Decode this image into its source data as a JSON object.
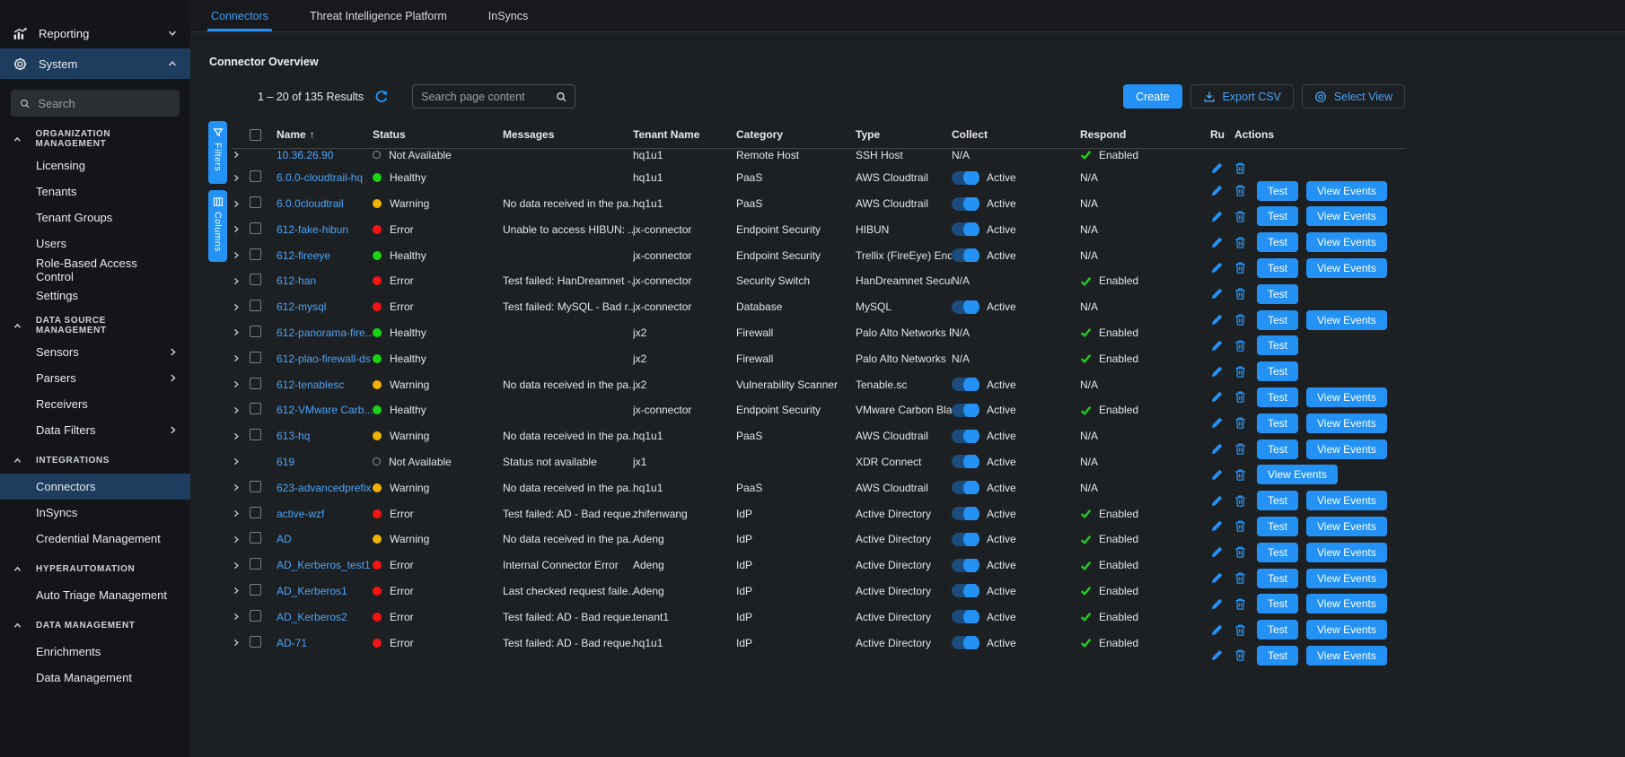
{
  "colors": {
    "accent": "#2492f4",
    "link": "#4ba3f7",
    "healthy": "#17d414",
    "warning": "#f2b300",
    "error": "#f51414",
    "enabled_check": "#25cb25",
    "selected_nav_bg": "#1d3c5e"
  },
  "sidebar": {
    "top_items": [
      {
        "label": "Reporting",
        "icon": "chart-icon",
        "chevron": "down",
        "selected": false
      },
      {
        "label": "System",
        "icon": "gear-icon",
        "chevron": "up",
        "selected": true
      }
    ],
    "search_placeholder": "Search",
    "sections": [
      {
        "title": "ORGANIZATION MANAGEMENT",
        "items": [
          {
            "label": "Licensing"
          },
          {
            "label": "Tenants"
          },
          {
            "label": "Tenant Groups"
          },
          {
            "label": "Users"
          },
          {
            "label": "Role-Based Access Control"
          },
          {
            "label": "Settings"
          }
        ]
      },
      {
        "title": "DATA SOURCE MANAGEMENT",
        "items": [
          {
            "label": "Sensors",
            "chevron": true
          },
          {
            "label": "Parsers",
            "chevron": true
          },
          {
            "label": "Receivers"
          },
          {
            "label": "Data Filters",
            "chevron": true
          }
        ]
      },
      {
        "title": "INTEGRATIONS",
        "items": [
          {
            "label": "Connectors",
            "selected": true
          },
          {
            "label": "InSyncs"
          },
          {
            "label": "Credential Management"
          }
        ]
      },
      {
        "title": "HYPERAUTOMATION",
        "items": [
          {
            "label": "Auto Triage Management"
          }
        ]
      },
      {
        "title": "DATA MANAGEMENT",
        "items": [
          {
            "label": "Enrichments"
          },
          {
            "label": "Data Management"
          }
        ]
      }
    ]
  },
  "tabs": [
    {
      "label": "Connectors",
      "active": true
    },
    {
      "label": "Threat Intelligence Platform",
      "active": false
    },
    {
      "label": "InSyncs",
      "active": false
    }
  ],
  "page": {
    "title": "Connector Overview",
    "results_text": "1 – 20 of 135 Results",
    "search_placeholder": "Search page content",
    "buttons": {
      "create": "Create",
      "export_csv": "Export CSV",
      "select_view": "Select View"
    },
    "rail": {
      "filters": "Filters",
      "columns": "Columns"
    }
  },
  "table": {
    "headers": [
      "Name",
      "Status",
      "Messages",
      "Tenant Name",
      "Category",
      "Type",
      "Collect",
      "Respond",
      "Ru",
      "Actions"
    ],
    "rows": [
      {
        "name": "10.36.26.90",
        "checkbox": false,
        "status": "Not Available",
        "message": "",
        "tenant": "hq1u1",
        "category": "Remote Host",
        "type": "SSH Host",
        "collect": "N/A",
        "respond": "Enabled",
        "actions": []
      },
      {
        "name": "6.0.0-cloudtrail-hq",
        "checkbox": true,
        "status": "Healthy",
        "message": "",
        "tenant": "hq1u1",
        "category": "PaaS",
        "type": "AWS Cloudtrail",
        "collect": "Active",
        "respond": "N/A",
        "actions": [
          "Test",
          "View Events"
        ]
      },
      {
        "name": "6.0.0cloudtrail",
        "checkbox": true,
        "status": "Warning",
        "message": "No data received in the pa...",
        "tenant": "hq1u1",
        "category": "PaaS",
        "type": "AWS Cloudtrail",
        "collect": "Active",
        "respond": "N/A",
        "actions": [
          "Test",
          "View Events"
        ]
      },
      {
        "name": "612-fake-hibun",
        "checkbox": true,
        "status": "Error",
        "message": "Unable to access HIBUN: ...",
        "tenant": "jx-connector",
        "category": "Endpoint Security",
        "type": "HIBUN",
        "collect": "Active",
        "respond": "N/A",
        "actions": [
          "Test",
          "View Events"
        ]
      },
      {
        "name": "612-fireeye",
        "checkbox": true,
        "status": "Healthy",
        "message": "",
        "tenant": "jx-connector",
        "category": "Endpoint Security",
        "type": "Trellix (FireEye) Endp",
        "collect": "Active",
        "respond": "N/A",
        "actions": [
          "Test",
          "View Events"
        ]
      },
      {
        "name": "612-han",
        "checkbox": true,
        "status": "Error",
        "message": "Test failed: HanDreamnet -...",
        "tenant": "jx-connector",
        "category": "Security Switch",
        "type": "HanDreamnet Securit",
        "collect": "N/A",
        "respond": "Enabled",
        "actions": [
          "Test"
        ]
      },
      {
        "name": "612-mysql",
        "checkbox": true,
        "status": "Error",
        "message": "Test failed: MySQL - Bad r...",
        "tenant": "jx-connector",
        "category": "Database",
        "type": "MySQL",
        "collect": "Active",
        "respond": "N/A",
        "actions": [
          "Test",
          "View Events"
        ]
      },
      {
        "name": "612-panorama-fire...",
        "checkbox": true,
        "status": "Healthy",
        "message": "",
        "tenant": "jx2",
        "category": "Firewall",
        "type": "Palo Alto Networks Pa",
        "collect": "N/A",
        "respond": "Enabled",
        "actions": [
          "Test"
        ]
      },
      {
        "name": "612-plao-firewall-ds",
        "checkbox": true,
        "status": "Healthy",
        "message": "",
        "tenant": "jx2",
        "category": "Firewall",
        "type": "Palo Alto Networks",
        "collect": "N/A",
        "respond": "Enabled",
        "actions": [
          "Test"
        ]
      },
      {
        "name": "612-tenablesc",
        "checkbox": true,
        "status": "Warning",
        "message": "No data received in the pa...",
        "tenant": "jx2",
        "category": "Vulnerability Scanner",
        "type": "Tenable.sc",
        "collect": "Active",
        "respond": "N/A",
        "actions": [
          "Test",
          "View Events"
        ]
      },
      {
        "name": "612-VMware Carb...",
        "checkbox": true,
        "status": "Healthy",
        "message": "",
        "tenant": "jx-connector",
        "category": "Endpoint Security",
        "type": "VMware Carbon Blac",
        "collect": "Active",
        "respond": "Enabled",
        "actions": [
          "Test",
          "View Events"
        ]
      },
      {
        "name": "613-hq",
        "checkbox": true,
        "status": "Warning",
        "message": "No data received in the pa...",
        "tenant": "hq1u1",
        "category": "PaaS",
        "type": "AWS Cloudtrail",
        "collect": "Active",
        "respond": "N/A",
        "actions": [
          "Test",
          "View Events"
        ]
      },
      {
        "name": "619",
        "checkbox": false,
        "status": "Not Available",
        "message": "Status not available",
        "tenant": "jx1",
        "category": "",
        "type": "XDR Connect",
        "collect": "Active",
        "respond": "N/A",
        "actions": [
          "View Events"
        ]
      },
      {
        "name": "623-advancedprefix",
        "checkbox": true,
        "status": "Warning",
        "message": "No data received in the pa...",
        "tenant": "hq1u1",
        "category": "PaaS",
        "type": "AWS Cloudtrail",
        "collect": "Active",
        "respond": "N/A",
        "actions": [
          "Test",
          "View Events"
        ]
      },
      {
        "name": "active-wzf",
        "checkbox": true,
        "status": "Error",
        "message": "Test failed: AD - Bad reque...",
        "tenant": "zhifenwang",
        "category": "IdP",
        "type": "Active Directory",
        "collect": "Active",
        "respond": "Enabled",
        "actions": [
          "Test",
          "View Events"
        ]
      },
      {
        "name": "AD",
        "checkbox": true,
        "status": "Warning",
        "message": "No data received in the pa...",
        "tenant": "Adeng",
        "category": "IdP",
        "type": "Active Directory",
        "collect": "Active",
        "respond": "Enabled",
        "actions": [
          "Test",
          "View Events"
        ]
      },
      {
        "name": "AD_Kerberos_test1",
        "checkbox": true,
        "status": "Error",
        "message": "Internal Connector Error",
        "tenant": "Adeng",
        "category": "IdP",
        "type": "Active Directory",
        "collect": "Active",
        "respond": "Enabled",
        "actions": [
          "Test",
          "View Events"
        ]
      },
      {
        "name": "AD_Kerberos1",
        "checkbox": true,
        "status": "Error",
        "message": "Last checked request faile...",
        "tenant": "Adeng",
        "category": "IdP",
        "type": "Active Directory",
        "collect": "Active",
        "respond": "Enabled",
        "actions": [
          "Test",
          "View Events"
        ]
      },
      {
        "name": "AD_Kerberos2",
        "checkbox": true,
        "status": "Error",
        "message": "Test failed: AD - Bad reque...",
        "tenant": "tenant1",
        "category": "IdP",
        "type": "Active Directory",
        "collect": "Active",
        "respond": "Enabled",
        "actions": [
          "Test",
          "View Events"
        ]
      },
      {
        "name": "AD-71",
        "checkbox": true,
        "status": "Error",
        "message": "Test failed: AD - Bad reque...",
        "tenant": "hq1u1",
        "category": "IdP",
        "type": "Active Directory",
        "collect": "Active",
        "respond": "Enabled",
        "actions": [
          "Test",
          "View Events"
        ]
      }
    ]
  }
}
